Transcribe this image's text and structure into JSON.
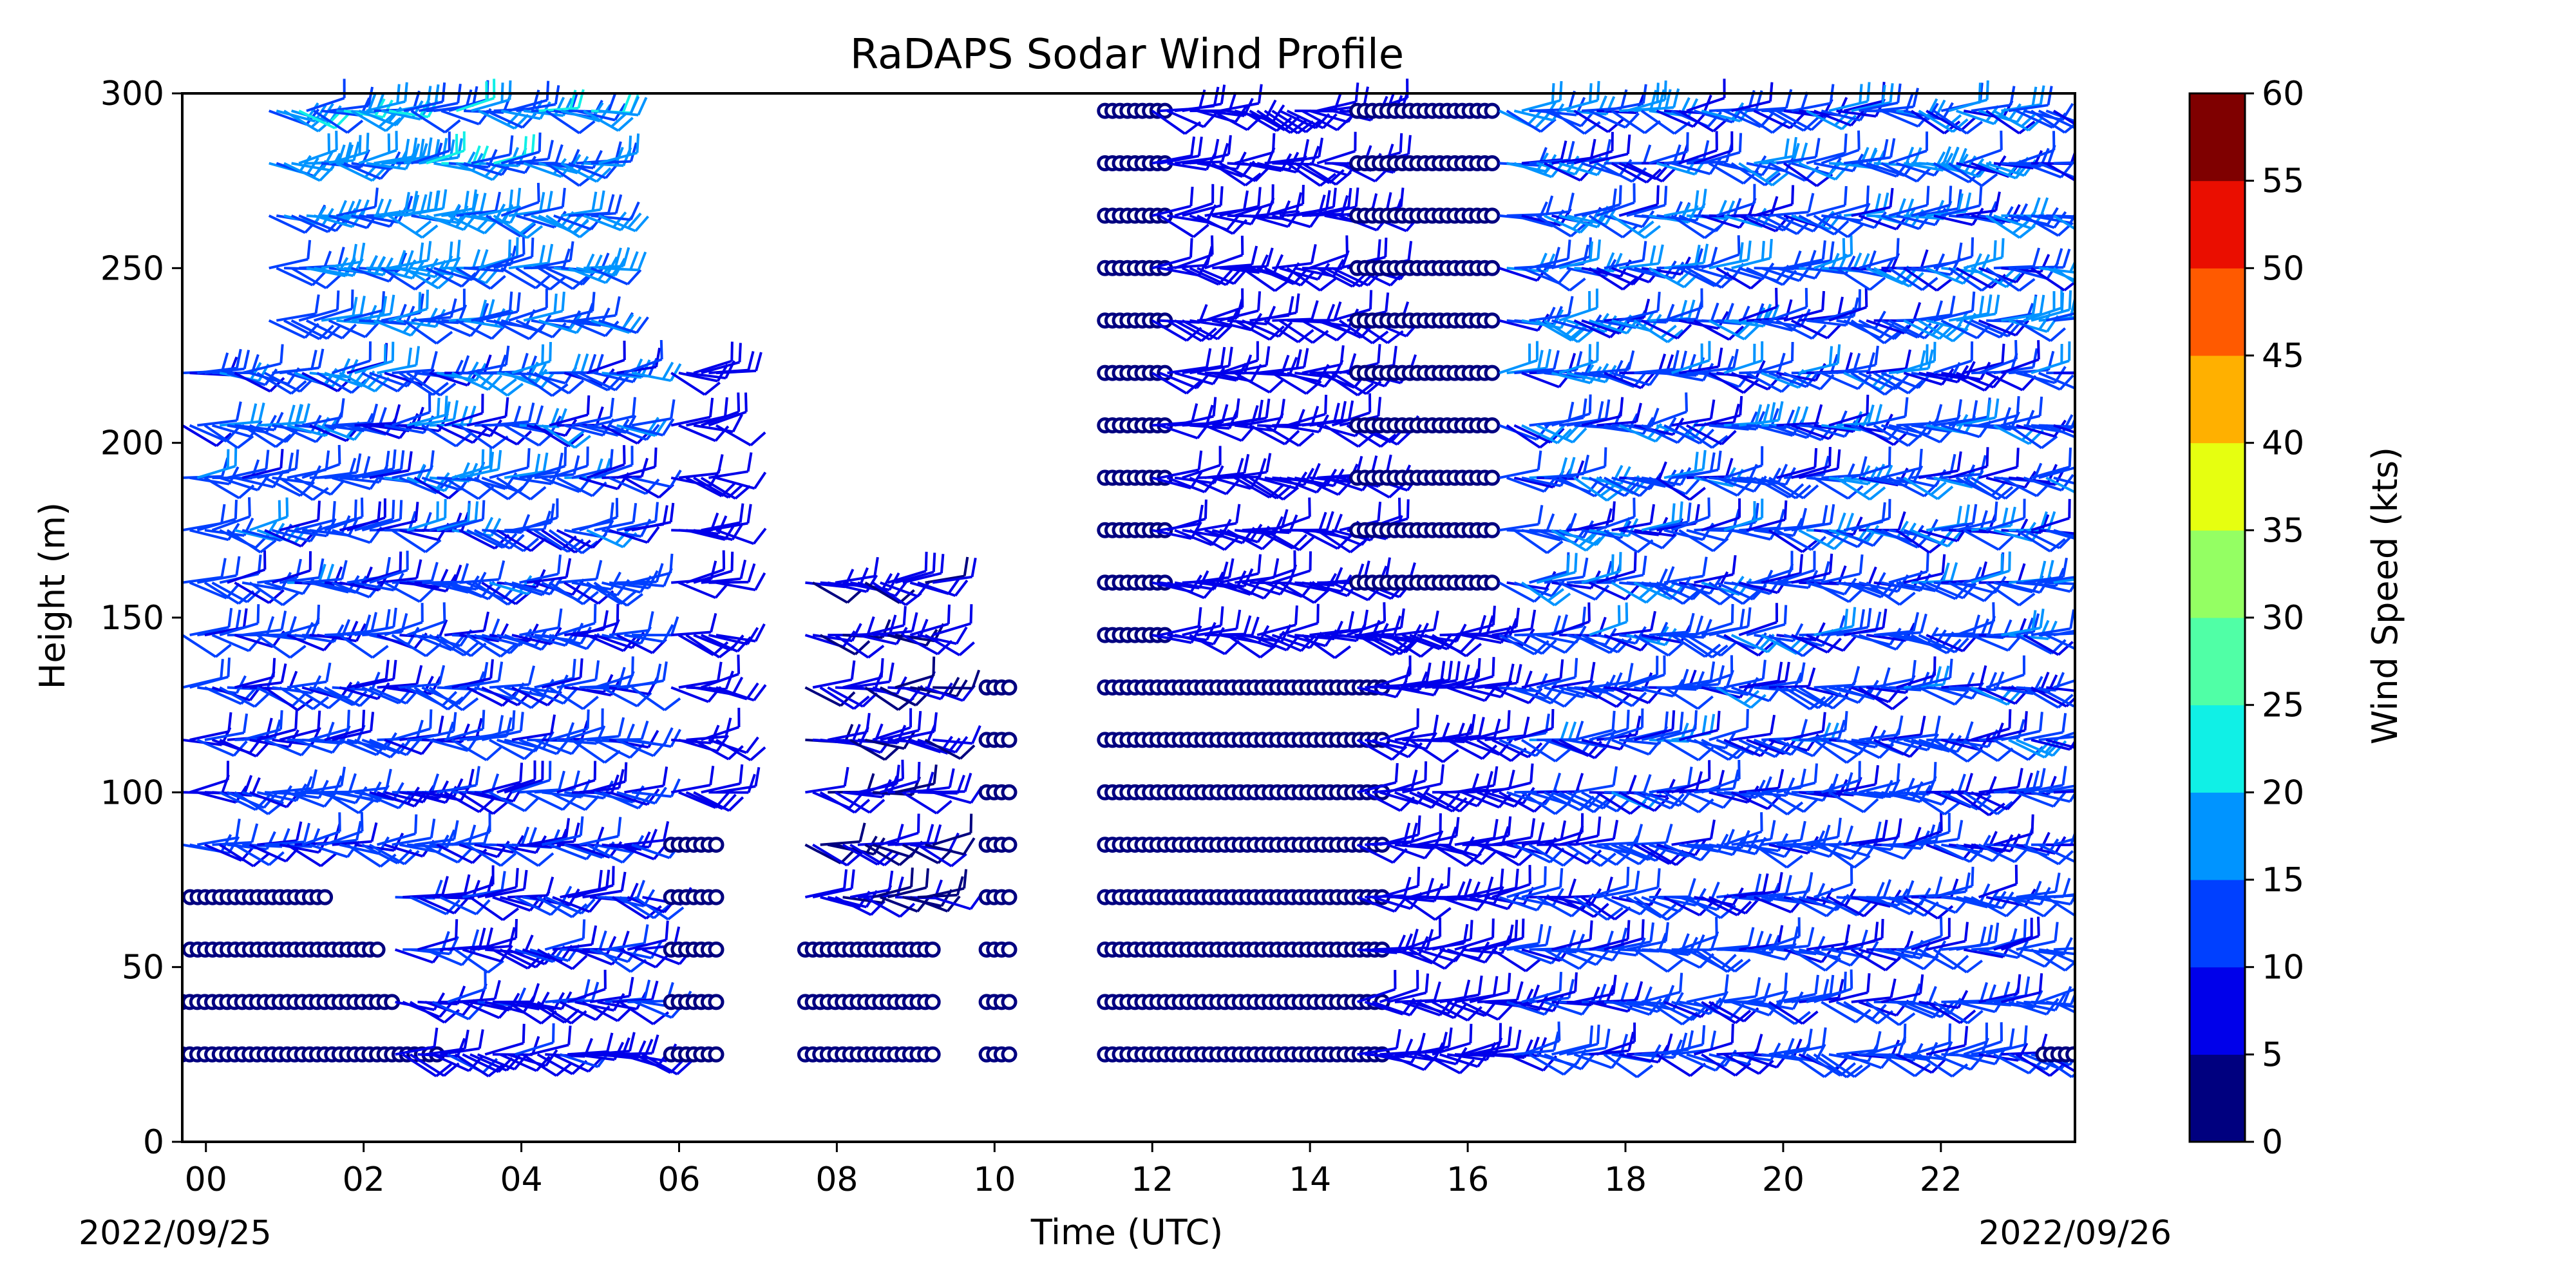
{
  "chart_data": {
    "type": "scatter",
    "title": "RaDAPS Sodar Wind Profile",
    "xlabel": "Time (UTC)",
    "ylabel": "Height (m)",
    "x_ticks": [
      "00",
      "02",
      "04",
      "06",
      "08",
      "10",
      "12",
      "14",
      "16",
      "18",
      "20",
      "22"
    ],
    "x_tick_values": [
      0,
      2,
      4,
      6,
      8,
      10,
      12,
      14,
      16,
      18,
      20,
      22
    ],
    "xlim": [
      -0.3,
      23.7
    ],
    "y_ticks": [
      "0",
      "50",
      "100",
      "150",
      "200",
      "250",
      "300"
    ],
    "y_tick_values": [
      0,
      50,
      100,
      150,
      200,
      250,
      300
    ],
    "ylim": [
      0,
      300
    ],
    "start_date_label": "2022/09/25",
    "end_date_label": "2022/09/26",
    "heights": [
      25,
      40,
      55,
      70,
      85,
      100,
      115,
      130,
      145,
      160,
      175,
      190,
      205,
      220,
      235,
      250,
      265,
      280,
      295
    ],
    "colorbar": {
      "label": "Wind Speed (kts)",
      "ticks": [
        "0",
        "5",
        "10",
        "15",
        "20",
        "25",
        "30",
        "35",
        "40",
        "45",
        "50",
        "55",
        "60"
      ],
      "tick_values": [
        0,
        5,
        10,
        15,
        20,
        25,
        30,
        35,
        40,
        45,
        50,
        55,
        60
      ],
      "colors": [
        "#00007f",
        "#0000ea",
        "#0040ff",
        "#0094ff",
        "#10f0e6",
        "#50ffa6",
        "#94ff63",
        "#e6ff10",
        "#ffb000",
        "#ff5a00",
        "#ea0e00",
        "#7f0000"
      ]
    },
    "grid": false,
    "legend": "colorbar-right",
    "segments": [
      {
        "t0": -0.3,
        "t1": 3.0,
        "hmin": 25,
        "hmax": 25,
        "mode": "calm"
      },
      {
        "t0": -0.3,
        "t1": 2.4,
        "hmin": 40,
        "hmax": 40,
        "mode": "calm"
      },
      {
        "t0": -0.2,
        "t1": 2.2,
        "hmin": 55,
        "hmax": 55,
        "mode": "calm"
      },
      {
        "t0": -0.2,
        "t1": 1.6,
        "hmin": 70,
        "hmax": 70,
        "mode": "calm"
      },
      {
        "t0": 2.4,
        "t1": 5.6,
        "hmin": 25,
        "hmax": 70,
        "mode": "barb",
        "smin": 6,
        "smax": 13
      },
      {
        "t0": -0.3,
        "t1": 5.4,
        "hmin": 85,
        "hmax": 220,
        "mode": "barb",
        "smin": 8,
        "smax": 17
      },
      {
        "t0": 0.8,
        "t1": 5.0,
        "hmin": 235,
        "hmax": 295,
        "mode": "barb",
        "smin": 10,
        "smax": 22
      },
      {
        "t0": 5.9,
        "t1": 6.5,
        "hmin": 25,
        "hmax": 85,
        "mode": "calm"
      },
      {
        "t0": 5.9,
        "t1": 6.5,
        "hmin": 100,
        "hmax": 220,
        "mode": "barb",
        "smin": 5,
        "smax": 9
      },
      {
        "t0": 7.6,
        "t1": 9.3,
        "hmin": 25,
        "hmax": 55,
        "mode": "calm"
      },
      {
        "t0": 7.6,
        "t1": 9.3,
        "hmin": 70,
        "hmax": 160,
        "mode": "barb",
        "smin": 4,
        "smax": 8
      },
      {
        "t0": 9.9,
        "t1": 10.2,
        "hmin": 25,
        "hmax": 130,
        "mode": "calm"
      },
      {
        "t0": 11.4,
        "t1": 15.0,
        "hmin": 25,
        "hmax": 130,
        "mode": "calm"
      },
      {
        "t0": 11.4,
        "t1": 12.2,
        "hmin": 145,
        "hmax": 295,
        "mode": "calm"
      },
      {
        "t0": 12.0,
        "t1": 14.8,
        "hmin": 140,
        "hmax": 295,
        "mode": "barb",
        "smin": 5,
        "smax": 10
      },
      {
        "t0": 14.6,
        "t1": 16.4,
        "hmin": 160,
        "hmax": 295,
        "mode": "calm"
      },
      {
        "t0": 14.6,
        "t1": 16.4,
        "hmin": 25,
        "hmax": 145,
        "mode": "barb",
        "smin": 5,
        "smax": 10
      },
      {
        "t0": 16.4,
        "t1": 23.5,
        "hmin": 25,
        "hmax": 295,
        "mode": "barb",
        "smin": 8,
        "smax": 18
      },
      {
        "t0": 23.3,
        "t1": 23.7,
        "hmin": 25,
        "hmax": 25,
        "mode": "calm"
      }
    ]
  }
}
